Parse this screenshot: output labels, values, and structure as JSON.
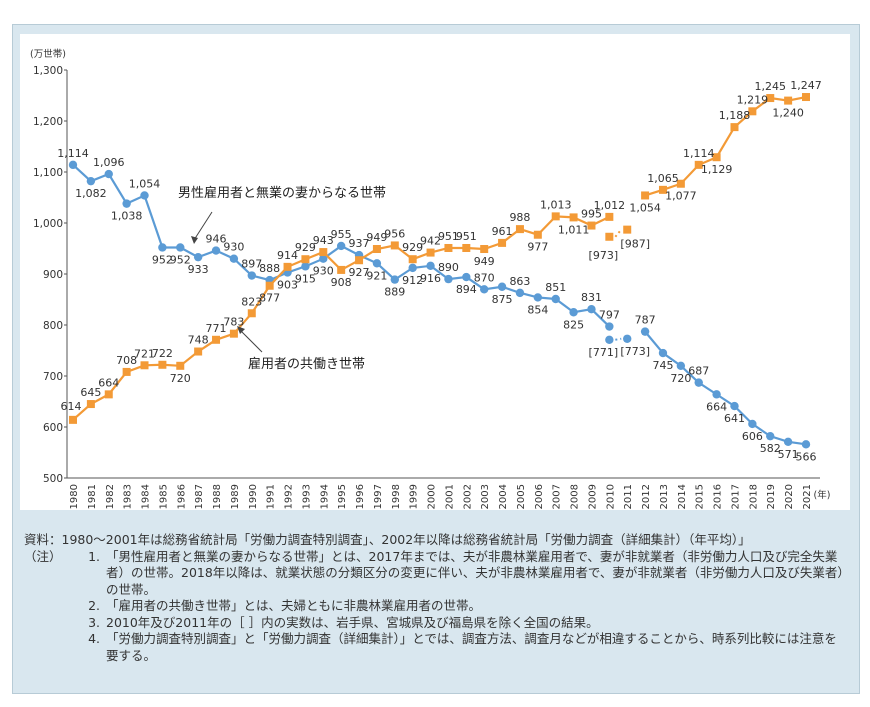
{
  "chart_data": {
    "type": "line",
    "ylabel": "(万世帯)",
    "xunit": "(年)",
    "ylim": [
      500,
      1300
    ],
    "yticks": [
      "500",
      "600",
      "700",
      "800",
      "900",
      "1,000",
      "1,100",
      "1,200",
      "1,300"
    ],
    "x": [
      "1980",
      "1981",
      "1982",
      "1983",
      "1984",
      "1985",
      "1986",
      "1987",
      "1988",
      "1989",
      "1990",
      "1991",
      "1992",
      "1993",
      "1994",
      "1995",
      "1996",
      "1997",
      "1998",
      "1999",
      "2000",
      "2001",
      "2002",
      "2003",
      "2004",
      "2005",
      "2006",
      "2007",
      "2008",
      "2009",
      "2010",
      "2011",
      "2012",
      "2013",
      "2014",
      "2015",
      "2016",
      "2017",
      "2018",
      "2019",
      "2020",
      "2021"
    ],
    "grid": false,
    "series": [
      {
        "name": "男性雇用者と無業の妻からなる世帯",
        "color": "#5b9bd5",
        "values": [
          1114,
          1082,
          1096,
          1038,
          1054,
          952,
          952,
          933,
          946,
          930,
          897,
          888,
          903,
          915,
          930,
          955,
          937,
          921,
          889,
          912,
          916,
          890,
          894,
          870,
          875,
          863,
          854,
          851,
          825,
          831,
          797,
          null,
          787,
          745,
          720,
          687,
          664,
          641,
          606,
          582,
          571,
          566
        ],
        "bracketed": {
          "x": [
            "2010",
            "2011"
          ],
          "values": [
            771,
            773
          ],
          "labels": [
            "[771]",
            "[773]"
          ]
        }
      },
      {
        "name": "雇用者の共働き世帯",
        "color": "#f39a36",
        "values": [
          614,
          645,
          664,
          708,
          721,
          722,
          720,
          748,
          771,
          783,
          823,
          877,
          914,
          929,
          943,
          908,
          927,
          949,
          956,
          929,
          942,
          951,
          951,
          949,
          961,
          988,
          977,
          1013,
          1011,
          995,
          1012,
          null,
          1054,
          1065,
          1077,
          1114,
          1129,
          1188,
          1219,
          1245,
          1240,
          1247
        ],
        "bracketed": {
          "x": [
            "2010",
            "2011"
          ],
          "values": [
            973,
            987
          ],
          "labels": [
            "[973]",
            "[987]"
          ]
        }
      }
    ]
  },
  "notes": {
    "source": "資料：1980～2001年は総務省統計局「労働力調査特別調査」、2002年以降は総務省統計局「労働力調査（詳細集計）（年平均）」",
    "note_label": "（注）",
    "items": [
      {
        "num": "1.",
        "text": "「男性雇用者と無業の妻からなる世帯」とは、2017年までは、夫が非農林業雇用者で、妻が非就業者（非労働力人口及び完全失業者）の世帯。2018年以降は、就業状態の分類区分の変更に伴い、夫が非農林業雇用者で、妻が非就業者（非労働力人口及び失業者）の世帯。"
      },
      {
        "num": "2.",
        "text": "「雇用者の共働き世帯」とは、夫婦ともに非農林業雇用者の世帯。"
      },
      {
        "num": "3.",
        "text": "2010年及び2011年の［ ］内の実数は、岩手県、宮城県及び福島県を除く全国の結果。"
      },
      {
        "num": "4.",
        "text": "「労働力調査特別調査」と「労働力調査（詳細集計）」とでは、調査方法、調査月などが相違することから、時系列比較には注意を要する。"
      }
    ]
  }
}
